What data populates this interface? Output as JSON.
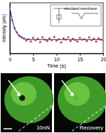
{
  "chart_data": {
    "type": "scatter",
    "x_label": "Time (s)",
    "y_label": "Intensity (arb)",
    "annotation": "simulated membrane",
    "xlim": [
      0,
      20
    ],
    "xticks": [
      0,
      5,
      10,
      15,
      20
    ],
    "ylim": [
      0,
      1.1
    ],
    "tick_labels": "x",
    "grid": false,
    "series": [
      {
        "type": "scatter",
        "marker": "circle",
        "color": "#d9342b",
        "x": [
          0,
          0.5,
          1,
          1.5,
          2,
          2.5,
          3,
          3.5,
          4,
          4.5,
          5,
          5.5,
          6,
          6.5,
          7,
          7.5,
          8,
          8.5,
          9,
          9.5,
          10,
          10.5,
          11,
          11.5,
          12,
          12.5,
          13,
          13.5,
          14,
          14.5,
          15,
          15.5,
          16,
          16.5,
          17,
          17.5,
          18,
          18.5,
          19,
          19.5,
          20
        ],
        "values": [
          1.0,
          0.72,
          0.55,
          0.46,
          0.39,
          0.36,
          0.33,
          0.28,
          0.31,
          0.26,
          0.34,
          0.29,
          0.32,
          0.25,
          0.35,
          0.3,
          0.27,
          0.33,
          0.29,
          0.36,
          0.28,
          0.31,
          0.24,
          0.33,
          0.3,
          0.35,
          0.27,
          0.32,
          0.29,
          0.26,
          0.34,
          0.3,
          0.31,
          0.27,
          0.35,
          0.29,
          0.32,
          0.26,
          0.33,
          0.3,
          0.28
        ]
      },
      {
        "type": "line",
        "line_style": "solid",
        "color": "#3a4fb0",
        "x": [
          0,
          0.5,
          1,
          1.5,
          2,
          3,
          4,
          6,
          8,
          10,
          15,
          20
        ],
        "values": [
          1.0,
          0.74,
          0.56,
          0.45,
          0.38,
          0.32,
          0.305,
          0.3,
          0.3,
          0.3,
          0.3,
          0.3
        ]
      }
    ]
  },
  "panels": [
    {
      "label": "10nN"
    },
    {
      "label": "Recovery"
    }
  ]
}
